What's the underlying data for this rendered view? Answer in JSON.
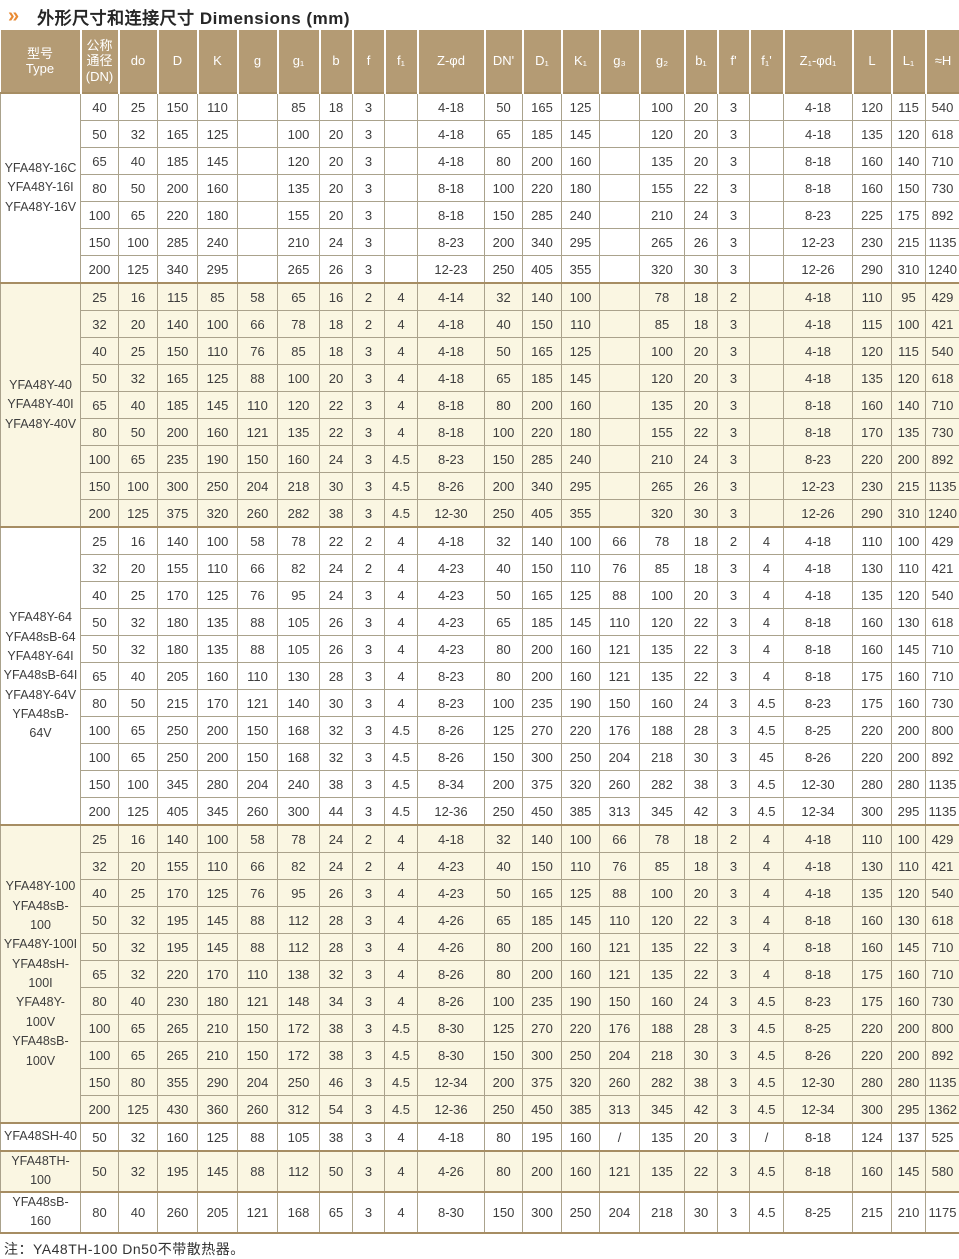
{
  "header": {
    "chevrons_glyph": "»",
    "title": "外形尺寸和连接尺寸 Dimensions (mm)"
  },
  "colors": {
    "header_bg": "#b49b74",
    "cream_row": "#faf6e2",
    "white_row": "#ffffff",
    "accent_orange": "#e98a33",
    "group_divider": "#a68d63"
  },
  "table": {
    "columns": [
      {
        "id": "type",
        "label": "型号\nType"
      },
      {
        "id": "dn",
        "label": "公称\n通径\n(DN)"
      },
      {
        "id": "do",
        "label": "do"
      },
      {
        "id": "D",
        "label": "D"
      },
      {
        "id": "K",
        "label": "K"
      },
      {
        "id": "g",
        "label": "g"
      },
      {
        "id": "g1",
        "label": "g₁"
      },
      {
        "id": "b",
        "label": "b"
      },
      {
        "id": "f",
        "label": "f"
      },
      {
        "id": "f1",
        "label": "f₁"
      },
      {
        "id": "Z-phi-d",
        "label": "Z-φd"
      },
      {
        "id": "DN-prime",
        "label": "DN'"
      },
      {
        "id": "D1",
        "label": "D₁"
      },
      {
        "id": "K1",
        "label": "K₁"
      },
      {
        "id": "g3",
        "label": "g₃"
      },
      {
        "id": "g2",
        "label": "g₂"
      },
      {
        "id": "b1",
        "label": "b₁"
      },
      {
        "id": "f-prime",
        "label": "f'"
      },
      {
        "id": "f1-prime",
        "label": "f₁'"
      },
      {
        "id": "Z1-phi-d1",
        "label": "Z₁-φd₁"
      },
      {
        "id": "L",
        "label": "L"
      },
      {
        "id": "L1",
        "label": "L₁"
      },
      {
        "id": "H",
        "label": "≈H"
      }
    ],
    "groups": [
      {
        "models": [
          "YFA48Y-16C",
          "YFA48Y-16I",
          "YFA48Y-16V"
        ],
        "shade": "white",
        "rows": [
          [
            40,
            25,
            150,
            110,
            "",
            85,
            18,
            3,
            "",
            "4-18",
            50,
            165,
            125,
            "",
            100,
            20,
            3,
            "",
            "4-18",
            120,
            115,
            540
          ],
          [
            50,
            32,
            165,
            125,
            "",
            100,
            20,
            3,
            "",
            "4-18",
            65,
            185,
            145,
            "",
            120,
            20,
            3,
            "",
            "4-18",
            135,
            120,
            618
          ],
          [
            65,
            40,
            185,
            145,
            "",
            120,
            20,
            3,
            "",
            "4-18",
            80,
            200,
            160,
            "",
            135,
            20,
            3,
            "",
            "8-18",
            160,
            140,
            710
          ],
          [
            80,
            50,
            200,
            160,
            "",
            135,
            20,
            3,
            "",
            "8-18",
            100,
            220,
            180,
            "",
            155,
            22,
            3,
            "",
            "8-18",
            160,
            150,
            730
          ],
          [
            100,
            65,
            220,
            180,
            "",
            155,
            20,
            3,
            "",
            "8-18",
            150,
            285,
            240,
            "",
            210,
            24,
            3,
            "",
            "8-23",
            225,
            175,
            892
          ],
          [
            150,
            100,
            285,
            240,
            "",
            210,
            24,
            3,
            "",
            "8-23",
            200,
            340,
            295,
            "",
            265,
            26,
            3,
            "",
            "12-23",
            230,
            215,
            1135
          ],
          [
            200,
            125,
            340,
            295,
            "",
            265,
            26,
            3,
            "",
            "12-23",
            250,
            405,
            355,
            "",
            320,
            30,
            3,
            "",
            "12-26",
            290,
            310,
            1240
          ]
        ]
      },
      {
        "models": [
          "YFA48Y-40",
          "YFA48Y-40I",
          "YFA48Y-40V"
        ],
        "shade": "cream",
        "rows": [
          [
            25,
            16,
            115,
            85,
            58,
            65,
            16,
            2,
            4,
            "4-14",
            32,
            140,
            100,
            "",
            78,
            18,
            2,
            "",
            "4-18",
            110,
            95,
            429
          ],
          [
            32,
            20,
            140,
            100,
            66,
            78,
            18,
            2,
            4,
            "4-18",
            40,
            150,
            110,
            "",
            85,
            18,
            3,
            "",
            "4-18",
            115,
            100,
            421
          ],
          [
            40,
            25,
            150,
            110,
            76,
            85,
            18,
            3,
            4,
            "4-18",
            50,
            165,
            125,
            "",
            100,
            20,
            3,
            "",
            "4-18",
            120,
            115,
            540
          ],
          [
            50,
            32,
            165,
            125,
            88,
            100,
            20,
            3,
            4,
            "4-18",
            65,
            185,
            145,
            "",
            120,
            20,
            3,
            "",
            "4-18",
            135,
            120,
            618
          ],
          [
            65,
            40,
            185,
            145,
            110,
            120,
            22,
            3,
            4,
            "8-18",
            80,
            200,
            160,
            "",
            135,
            20,
            3,
            "",
            "8-18",
            160,
            140,
            710
          ],
          [
            80,
            50,
            200,
            160,
            121,
            135,
            22,
            3,
            4,
            "8-18",
            100,
            220,
            180,
            "",
            155,
            22,
            3,
            "",
            "8-18",
            170,
            135,
            730
          ],
          [
            100,
            65,
            235,
            190,
            150,
            160,
            24,
            3,
            4.5,
            "8-23",
            150,
            285,
            240,
            "",
            210,
            24,
            3,
            "",
            "8-23",
            220,
            200,
            892
          ],
          [
            150,
            100,
            300,
            250,
            204,
            218,
            30,
            3,
            4.5,
            "8-26",
            200,
            340,
            295,
            "",
            265,
            26,
            3,
            "",
            "12-23",
            230,
            215,
            1135
          ],
          [
            200,
            125,
            375,
            320,
            260,
            282,
            38,
            3,
            4.5,
            "12-30",
            250,
            405,
            355,
            "",
            320,
            30,
            3,
            "",
            "12-26",
            290,
            310,
            1240
          ]
        ]
      },
      {
        "models": [
          "YFA48Y-64",
          "YFA48sB-64",
          "YFA48Y-64I",
          "YFA48sB-64I",
          "YFA48Y-64V",
          "YFA48sB-64V"
        ],
        "shade": "white",
        "rows": [
          [
            25,
            16,
            140,
            100,
            58,
            78,
            22,
            2,
            4,
            "4-18",
            32,
            140,
            100,
            66,
            78,
            18,
            2,
            4,
            "4-18",
            110,
            100,
            429
          ],
          [
            32,
            20,
            155,
            110,
            66,
            82,
            24,
            2,
            4,
            "4-23",
            40,
            150,
            110,
            76,
            85,
            18,
            3,
            4,
            "4-18",
            130,
            110,
            421
          ],
          [
            40,
            25,
            170,
            125,
            76,
            95,
            24,
            3,
            4,
            "4-23",
            50,
            165,
            125,
            88,
            100,
            20,
            3,
            4,
            "4-18",
            135,
            120,
            540
          ],
          [
            50,
            32,
            180,
            135,
            88,
            105,
            26,
            3,
            4,
            "4-23",
            65,
            185,
            145,
            110,
            120,
            22,
            3,
            4,
            "8-18",
            160,
            130,
            618
          ],
          [
            50,
            32,
            180,
            135,
            88,
            105,
            26,
            3,
            4,
            "4-23",
            80,
            200,
            160,
            121,
            135,
            22,
            3,
            4,
            "8-18",
            160,
            145,
            710
          ],
          [
            65,
            40,
            205,
            160,
            110,
            130,
            28,
            3,
            4,
            "8-23",
            80,
            200,
            160,
            121,
            135,
            22,
            3,
            4,
            "8-18",
            175,
            160,
            710
          ],
          [
            80,
            50,
            215,
            170,
            121,
            140,
            30,
            3,
            4,
            "8-23",
            100,
            235,
            190,
            150,
            160,
            24,
            3,
            4.5,
            "8-23",
            175,
            160,
            730
          ],
          [
            100,
            65,
            250,
            200,
            150,
            168,
            32,
            3,
            4.5,
            "8-26",
            125,
            270,
            220,
            176,
            188,
            28,
            3,
            4.5,
            "8-25",
            220,
            200,
            800
          ],
          [
            100,
            65,
            250,
            200,
            150,
            168,
            32,
            3,
            4.5,
            "8-26",
            150,
            300,
            250,
            204,
            218,
            30,
            3,
            45,
            "8-26",
            220,
            200,
            892
          ],
          [
            150,
            100,
            345,
            280,
            204,
            240,
            38,
            3,
            4.5,
            "8-34",
            200,
            375,
            320,
            260,
            282,
            38,
            3,
            4.5,
            "12-30",
            280,
            280,
            1135
          ],
          [
            200,
            125,
            405,
            345,
            260,
            300,
            44,
            3,
            4.5,
            "12-36",
            250,
            450,
            385,
            313,
            345,
            42,
            3,
            4.5,
            "12-34",
            300,
            295,
            1135
          ]
        ]
      },
      {
        "models": [
          "YFA48Y-100",
          "YFA48sB-100",
          "YFA48Y-100I",
          "YFA48sH-100I",
          "YFA48Y-100V",
          "YFA48sB-100V"
        ],
        "shade": "cream",
        "rows": [
          [
            25,
            16,
            140,
            100,
            58,
            78,
            24,
            2,
            4,
            "4-18",
            32,
            140,
            100,
            66,
            78,
            18,
            2,
            4,
            "4-18",
            110,
            100,
            429
          ],
          [
            32,
            20,
            155,
            110,
            66,
            82,
            24,
            2,
            4,
            "4-23",
            40,
            150,
            110,
            76,
            85,
            18,
            3,
            4,
            "4-18",
            130,
            110,
            421
          ],
          [
            40,
            25,
            170,
            125,
            76,
            95,
            26,
            3,
            4,
            "4-23",
            50,
            165,
            125,
            88,
            100,
            20,
            3,
            4,
            "4-18",
            135,
            120,
            540
          ],
          [
            50,
            32,
            195,
            145,
            88,
            112,
            28,
            3,
            4,
            "4-26",
            65,
            185,
            145,
            110,
            120,
            22,
            3,
            4,
            "8-18",
            160,
            130,
            618
          ],
          [
            50,
            32,
            195,
            145,
            88,
            112,
            28,
            3,
            4,
            "4-26",
            80,
            200,
            160,
            121,
            135,
            22,
            3,
            4,
            "8-18",
            160,
            145,
            710
          ],
          [
            65,
            32,
            220,
            170,
            110,
            138,
            32,
            3,
            4,
            "8-26",
            80,
            200,
            160,
            121,
            135,
            22,
            3,
            4,
            "8-18",
            175,
            160,
            710
          ],
          [
            80,
            40,
            230,
            180,
            121,
            148,
            34,
            3,
            4,
            "8-26",
            100,
            235,
            190,
            150,
            160,
            24,
            3,
            4.5,
            "8-23",
            175,
            160,
            730
          ],
          [
            100,
            65,
            265,
            210,
            150,
            172,
            38,
            3,
            4.5,
            "8-30",
            125,
            270,
            220,
            176,
            188,
            28,
            3,
            4.5,
            "8-25",
            220,
            200,
            800
          ],
          [
            100,
            65,
            265,
            210,
            150,
            172,
            38,
            3,
            4.5,
            "8-30",
            150,
            300,
            250,
            204,
            218,
            30,
            3,
            4.5,
            "8-26",
            220,
            200,
            892
          ],
          [
            150,
            80,
            355,
            290,
            204,
            250,
            46,
            3,
            4.5,
            "12-34",
            200,
            375,
            320,
            260,
            282,
            38,
            3,
            4.5,
            "12-30",
            280,
            280,
            1135
          ],
          [
            200,
            125,
            430,
            360,
            260,
            312,
            54,
            3,
            4.5,
            "12-36",
            250,
            450,
            385,
            313,
            345,
            42,
            3,
            4.5,
            "12-34",
            300,
            295,
            1362
          ]
        ]
      },
      {
        "models": [
          "YFA48SH-40"
        ],
        "shade": "white",
        "rows": [
          [
            50,
            32,
            160,
            125,
            88,
            105,
            38,
            3,
            4,
            "4-18",
            80,
            195,
            160,
            "/",
            135,
            20,
            3,
            "/",
            "8-18",
            124,
            137,
            525
          ]
        ]
      },
      {
        "models": [
          "YFA48TH-100"
        ],
        "shade": "cream",
        "rows": [
          [
            50,
            32,
            195,
            145,
            88,
            112,
            50,
            3,
            4,
            "4-26",
            80,
            200,
            160,
            121,
            135,
            22,
            3,
            4.5,
            "8-18",
            160,
            145,
            580
          ]
        ]
      },
      {
        "models": [
          "YFA48sB-160"
        ],
        "shade": "white",
        "rows": [
          [
            80,
            40,
            260,
            205,
            121,
            168,
            65,
            3,
            4,
            "8-30",
            150,
            300,
            250,
            204,
            218,
            30,
            3,
            4.5,
            "8-25",
            215,
            210,
            1175
          ]
        ]
      }
    ]
  },
  "footnote": {
    "text": "注：YA48TH-100 Dn50不带散热器。"
  }
}
